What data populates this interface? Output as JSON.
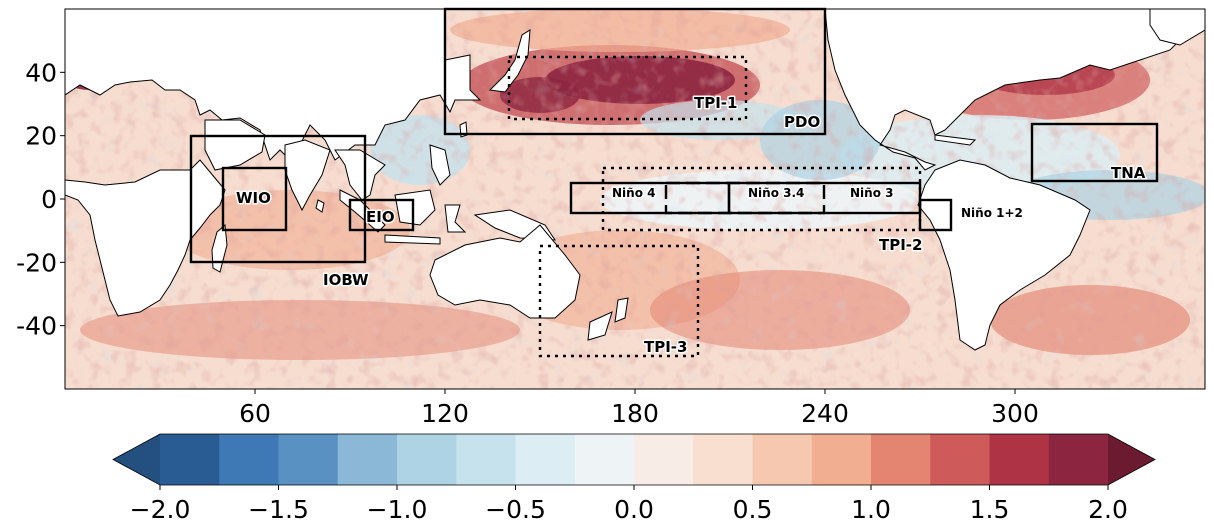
{
  "chart_data": {
    "type": "heatmap",
    "description_kind": "sea surface temperature anomaly map with index regions",
    "x_ticks": [
      "60",
      "120",
      "180",
      "240",
      "300"
    ],
    "y_ticks": [
      "40",
      "20",
      "0",
      "-20",
      "-40"
    ],
    "xlim": [
      0,
      360
    ],
    "ylim": [
      -60,
      60
    ],
    "colorbar": {
      "ticks": [
        "−2.0",
        "−1.5",
        "−1.0",
        "−0.5",
        "0.0",
        "0.5",
        "1.0",
        "1.5",
        "2.0"
      ],
      "range": [
        -2.0,
        2.0
      ],
      "levels": 16,
      "extend": "both",
      "colors": [
        "#23507e",
        "#2a5c94",
        "#3e78b5",
        "#5a91c3",
        "#8bb8d6",
        "#aed3e4",
        "#c6e2ec",
        "#dcedf3",
        "#eef4f6",
        "#f7ece6",
        "#f8dfd0",
        "#f6c8af",
        "#f2ae91",
        "#e48572",
        "#cf5a5a",
        "#ae3445",
        "#8c2540",
        "#6b1a30"
      ]
    },
    "regions": [
      {
        "name": "TPI-1",
        "lon": [
          140,
          205
        ],
        "lat": [
          25,
          45
        ],
        "style": "dotted"
      },
      {
        "name": "PDO",
        "lon": [
          120,
          240
        ],
        "lat": [
          20,
          60
        ],
        "style": "solid"
      },
      {
        "name": "WIO",
        "lon": [
          50,
          70
        ],
        "lat": [
          -10,
          10
        ],
        "style": "solid"
      },
      {
        "name": "IOBW",
        "lon": [
          40,
          95
        ],
        "lat": [
          -20,
          20
        ],
        "style": "solid"
      },
      {
        "name": "EIO",
        "lon": [
          90,
          110
        ],
        "lat": [
          -10,
          0
        ],
        "style": "solid"
      },
      {
        "name": "TPI-2",
        "lon": [
          170,
          270
        ],
        "lat": [
          -10,
          10
        ],
        "style": "dotted"
      },
      {
        "name": "Niño 4",
        "lon": [
          160,
          210
        ],
        "lat": [
          -5,
          5
        ],
        "style": "solid"
      },
      {
        "name": "Niño 3.4",
        "lon": [
          190,
          240
        ],
        "lat": [
          -5,
          5
        ],
        "style": "dashed"
      },
      {
        "name": "Niño 3",
        "lon": [
          210,
          270
        ],
        "lat": [
          -5,
          5
        ],
        "style": "solid"
      },
      {
        "name": "Niño 1+2",
        "lon": [
          270,
          280
        ],
        "lat": [
          -10,
          0
        ],
        "style": "solid"
      },
      {
        "name": "TNA",
        "lon": [
          302,
          342
        ],
        "lat": [
          5,
          25
        ],
        "style": "solid"
      },
      {
        "name": "TPI-3",
        "lon": [
          150,
          200
        ],
        "lat": [
          -50,
          -15
        ],
        "style": "dotted"
      }
    ]
  },
  "labels": {
    "tpi1": "TPI-1",
    "pdo": "PDO",
    "wio": "WIO",
    "eio": "EIO",
    "iobw": "IOBW",
    "nino4": "Niño 4",
    "nino34": "Niño 3.4",
    "nino3": "Niño 3",
    "nino12": "Niño 1+2",
    "tpi2": "TPI-2",
    "tna": "TNA",
    "tpi3": "TPI-3"
  }
}
